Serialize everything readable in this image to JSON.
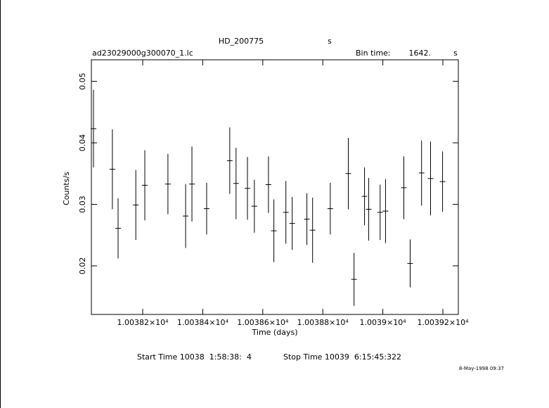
{
  "chart_data": {
    "type": "errorbar",
    "title": "HD_200775",
    "title_suffix": "s",
    "file_name": "ad23029000g300070_1.lc",
    "bin_time_label": "Bin time:",
    "bin_time": "1642.",
    "bin_time_unit": "s",
    "x_label": "Time (days)",
    "y_label": "Counts/s",
    "start_time": "Start Time 10038  1:58:38:  4",
    "stop_time": "Stop Time 10039  6:15:45:322",
    "date_stamp": "8-May-1998 09:37",
    "color": "#000000",
    "x": [
      10038.036,
      10038.099,
      10038.118,
      10038.177,
      10038.207,
      10038.284,
      10038.343,
      10038.364,
      10038.413,
      10038.49,
      10038.511,
      10038.549,
      10038.572,
      10038.619,
      10038.637,
      10038.677,
      10038.698,
      10038.747,
      10038.766,
      10038.825,
      10038.885,
      10038.904,
      10038.939,
      10038.953,
      10038.991,
      10039.009,
      10039.07,
      10039.091,
      10039.129,
      10039.159,
      10039.199
    ],
    "values": [
      0.0423,
      0.0357,
      0.0261,
      0.0299,
      0.0331,
      0.0333,
      0.0281,
      0.0333,
      0.0293,
      0.0371,
      0.0334,
      0.0326,
      0.0297,
      0.0332,
      0.0257,
      0.0287,
      0.0269,
      0.0276,
      0.0258,
      0.0293,
      0.035,
      0.0178,
      0.0313,
      0.0292,
      0.0287,
      0.0289,
      0.0327,
      0.0204,
      0.0351,
      0.0342,
      0.0337
    ],
    "errors": [
      0.0063,
      0.0065,
      0.0049,
      0.0057,
      0.0057,
      0.0049,
      0.0052,
      0.0061,
      0.0042,
      0.0054,
      0.0058,
      0.0051,
      0.0043,
      0.0046,
      0.0051,
      0.0051,
      0.0043,
      0.0042,
      0.0053,
      0.0042,
      0.0058,
      0.0043,
      0.0047,
      0.0051,
      0.0045,
      0.0052,
      0.0051,
      0.0039,
      0.0053,
      0.006,
      0.0049
    ],
    "xlim": [
      10038.029,
      10039.2515
    ],
    "ylim": [
      0.0121,
      0.0535
    ],
    "xticks": [
      {
        "value": 10038.2,
        "label": "1.00382×10⁴"
      },
      {
        "value": 10038.4,
        "label": "1.00384×10⁴"
      },
      {
        "value": 10038.6,
        "label": "1.00386×10⁴"
      },
      {
        "value": 10038.8,
        "label": "1.00388×10⁴"
      },
      {
        "value": 10039.0,
        "label": "1.0039×10⁴"
      },
      {
        "value": 10039.2,
        "label": "1.00392×10⁴"
      }
    ],
    "yticks": [
      0.02,
      0.03,
      0.04,
      0.05
    ]
  }
}
